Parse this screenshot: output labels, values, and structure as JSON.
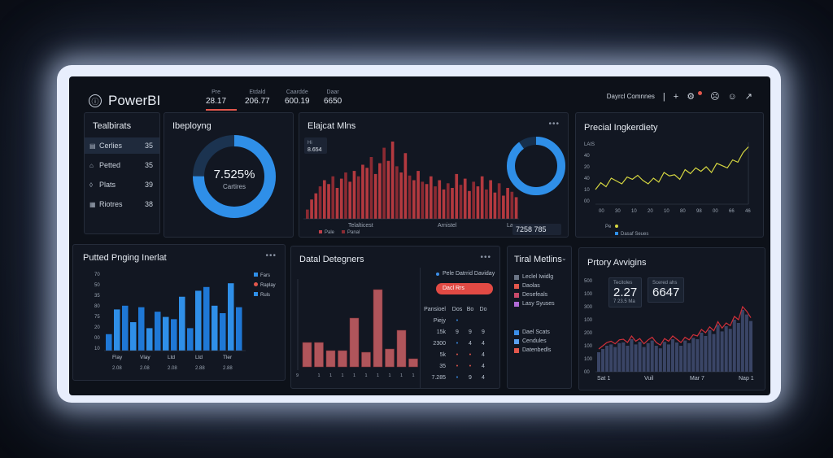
{
  "app": {
    "title": "PowerBI",
    "icon": "info-icon"
  },
  "kpis": [
    {
      "label": "Pre",
      "value": "28.17"
    },
    {
      "label": "Etdald",
      "value": "206.77"
    },
    {
      "label": "Caardde",
      "value": "600.19"
    },
    {
      "label": "Daar",
      "value": "6650"
    }
  ],
  "topbar_right": {
    "label": "Dayrcl Comnnes",
    "icons": [
      "plus-icon",
      "bell-icon",
      "face-icon",
      "smile-icon",
      "share-icon"
    ]
  },
  "sidebar": {
    "title": "Tealbirats",
    "items": [
      {
        "icon": "list-icon",
        "label": "Cerlies",
        "value": "35",
        "active": true
      },
      {
        "icon": "lock-icon",
        "label": "Petted",
        "value": "35",
        "active": false
      },
      {
        "icon": "shield-icon",
        "label": "Plats",
        "value": "39",
        "active": false
      },
      {
        "icon": "grid-icon",
        "label": "Riotres",
        "value": "38",
        "active": false
      }
    ]
  },
  "donut_panel": {
    "title": "Ibeployng",
    "value": "7.525%",
    "sublabel": "Cartires",
    "fraction": 0.75
  },
  "bar_panel": {
    "title": "Elajcat Mlns",
    "badge_label": "Hi",
    "badge_value": "8.654",
    "x_labels": [
      "Telalticest",
      "Arnistel",
      "Lao"
    ],
    "legend": [
      "Pale",
      "Panal"
    ],
    "summary": "7258 785",
    "bar_heights": [
      0.12,
      0.25,
      0.33,
      0.42,
      0.5,
      0.45,
      0.55,
      0.4,
      0.52,
      0.6,
      0.48,
      0.62,
      0.55,
      0.7,
      0.66,
      0.8,
      0.58,
      0.72,
      0.92,
      0.75,
      1.0,
      0.68,
      0.6,
      0.85,
      0.56,
      0.5,
      0.62,
      0.48,
      0.45,
      0.55,
      0.42,
      0.5,
      0.38,
      0.46,
      0.4,
      0.58,
      0.44,
      0.52,
      0.36,
      0.48,
      0.42,
      0.55,
      0.38,
      0.5,
      0.34,
      0.46,
      0.3,
      0.4,
      0.35,
      0.28
    ],
    "ring_fraction": 0.9
  },
  "line_panel": {
    "title": "Precial Ingkerdiety",
    "y_title": "LAIS",
    "y_labels": [
      "40",
      "20",
      "40",
      "10",
      "00"
    ],
    "x_labels": [
      "00",
      "30",
      "10",
      "20",
      "10",
      "80",
      "98",
      "00",
      "66",
      "46"
    ],
    "legend": [
      "Pe",
      "Dasaf Seues"
    ],
    "points": [
      0.2,
      0.32,
      0.25,
      0.4,
      0.35,
      0.3,
      0.42,
      0.38,
      0.45,
      0.36,
      0.3,
      0.4,
      0.33,
      0.5,
      0.44,
      0.46,
      0.38,
      0.55,
      0.48,
      0.58,
      0.52,
      0.6,
      0.5,
      0.66,
      0.62,
      0.58,
      0.72,
      0.68,
      0.85,
      0.95
    ]
  },
  "grouped_panel": {
    "title": "Putted Pnging Inerlat",
    "y_labels": [
      "70",
      "50",
      "35",
      "80",
      "75",
      "20",
      "00",
      "10"
    ],
    "x_labels": [
      "Flay",
      "Vlay",
      "Ltd",
      "Ltd",
      "Tler"
    ],
    "x_sub": [
      "2.08",
      "2.08",
      "2.08",
      "2.88",
      "2.88"
    ],
    "legend": [
      "Fars",
      "Raplay",
      "Ruls"
    ],
    "bars": [
      0.22,
      0.55,
      0.6,
      0.38,
      0.58,
      0.3,
      0.52,
      0.45,
      0.42,
      0.72,
      0.3,
      0.8,
      0.85,
      0.6,
      0.5,
      0.9,
      0.58
    ]
  },
  "red_panel": {
    "title": "Datal Detegners",
    "bars": [
      0.3,
      0.3,
      0.2,
      0.2,
      0.6,
      0.18,
      0.95,
      0.22,
      0.45,
      0.1
    ],
    "x_labels": [
      "9",
      "1",
      "1",
      "1",
      "1",
      "1",
      "1",
      "1",
      "1",
      "1"
    ],
    "legend": "Pele Datrrid Daviday",
    "pill": "Dacl Rrs",
    "table_header": [
      "Pansioel",
      "Dos",
      "Bo",
      "Do"
    ],
    "rows": [
      {
        "label": "Piejy",
        "c1": "•",
        "c2": "",
        "c3": ""
      },
      {
        "label": "15k",
        "c1": "9",
        "c2": "9",
        "c3": "9"
      },
      {
        "label": "2300",
        "c1": "•",
        "c2": "4",
        "c3": "4"
      },
      {
        "label": "5k",
        "c1": "•",
        "c2": "•",
        "c3": "4"
      },
      {
        "label": "35",
        "c1": "•",
        "c2": "•",
        "c3": "4"
      },
      {
        "label": "7.285",
        "c1": "•",
        "c2": "9",
        "c3": "4"
      }
    ]
  },
  "metrics_panel": {
    "title": "Tiral Metlins",
    "legend_a": [
      "Leclel Iwidlg",
      "Daolas",
      "Desefeals",
      "Lasy Syuses"
    ],
    "legend_b": [
      "Dael Scats",
      "Cendules",
      "Datenbedls"
    ],
    "colors_a": [
      "#6b7586",
      "#e2574c",
      "#c94a6a",
      "#b06ad6"
    ],
    "colors_b": [
      "#3b8ee8",
      "#5aa0f0",
      "#e2574c"
    ]
  },
  "area_panel": {
    "title": "Prtory Avvigins",
    "y_labels": [
      "500",
      "100",
      "300",
      "100",
      "200",
      "100",
      "100",
      "00"
    ],
    "x_labels": [
      "Sat 1",
      "Vuil",
      "Mar 7",
      "Nap 1"
    ],
    "stat1": {
      "label": "Tecitoles",
      "value": "2.27",
      "sub": "7 23.5 Ma"
    },
    "stat2": {
      "label": "Scered ahs",
      "value": "6647"
    },
    "values": [
      0.3,
      0.35,
      0.4,
      0.42,
      0.38,
      0.44,
      0.45,
      0.4,
      0.5,
      0.42,
      0.46,
      0.38,
      0.44,
      0.48,
      0.4,
      0.36,
      0.46,
      0.42,
      0.5,
      0.45,
      0.4,
      0.48,
      0.44,
      0.52,
      0.5,
      0.6,
      0.55,
      0.64,
      0.58,
      0.72,
      0.62,
      0.7,
      0.66,
      0.8,
      0.75,
      0.95,
      0.88,
      0.78
    ]
  },
  "colors": {
    "accent_red": "#c0404a",
    "accent_blue": "#2f8fe8",
    "accent_yellow": "#d5d640"
  }
}
